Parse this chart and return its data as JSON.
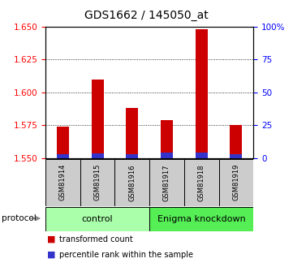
{
  "title": "GDS1662 / 145050_at",
  "samples": [
    "GSM81914",
    "GSM81915",
    "GSM81916",
    "GSM81917",
    "GSM81918",
    "GSM81919"
  ],
  "red_values": [
    1.574,
    1.61,
    1.588,
    1.579,
    1.648,
    1.575
  ],
  "blue_pct": [
    3.0,
    3.5,
    3.0,
    4.0,
    4.5,
    3.0
  ],
  "y_min": 1.55,
  "y_max": 1.65,
  "y_ticks_left": [
    1.55,
    1.575,
    1.6,
    1.625,
    1.65
  ],
  "y_ticks_right_pct": [
    0,
    25,
    50,
    75,
    100
  ],
  "bar_color_red": "#cc0000",
  "bar_color_blue": "#3333cc",
  "bar_width": 0.35,
  "legend_red": "transformed count",
  "legend_blue": "percentile rank within the sample",
  "control_color": "#aaffaa",
  "knockdown_color": "#55ee55",
  "sample_bg": "#cccccc",
  "grid_yticks": [
    1.575,
    1.6,
    1.625
  ],
  "title_fontsize": 10,
  "tick_fontsize": 7.5,
  "sample_fontsize": 6.0,
  "proto_fontsize": 8,
  "legend_fontsize": 7
}
